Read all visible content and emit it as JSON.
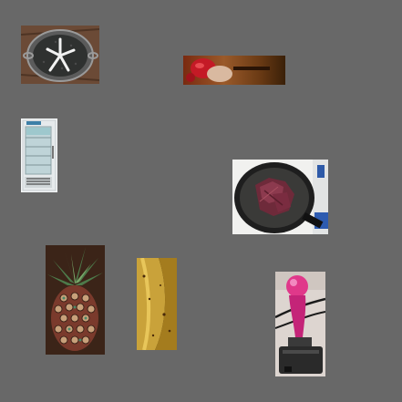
{
  "canvas": {
    "background": "#686868"
  },
  "items": [
    {
      "name": "pan-grill",
      "icon": "frying-pan-with-starfish-icon"
    },
    {
      "name": "strawberry",
      "icon": "strawberry-closeup-icon"
    },
    {
      "name": "fridge",
      "icon": "glass-door-refrigerator-icon"
    },
    {
      "name": "meat-pan",
      "icon": "meat-in-frying-pan-icon"
    },
    {
      "name": "pineapple",
      "icon": "pineapple-icon"
    },
    {
      "name": "banana",
      "icon": "banana-icon"
    },
    {
      "name": "joystick",
      "icon": "pink-joystick-icon"
    }
  ]
}
